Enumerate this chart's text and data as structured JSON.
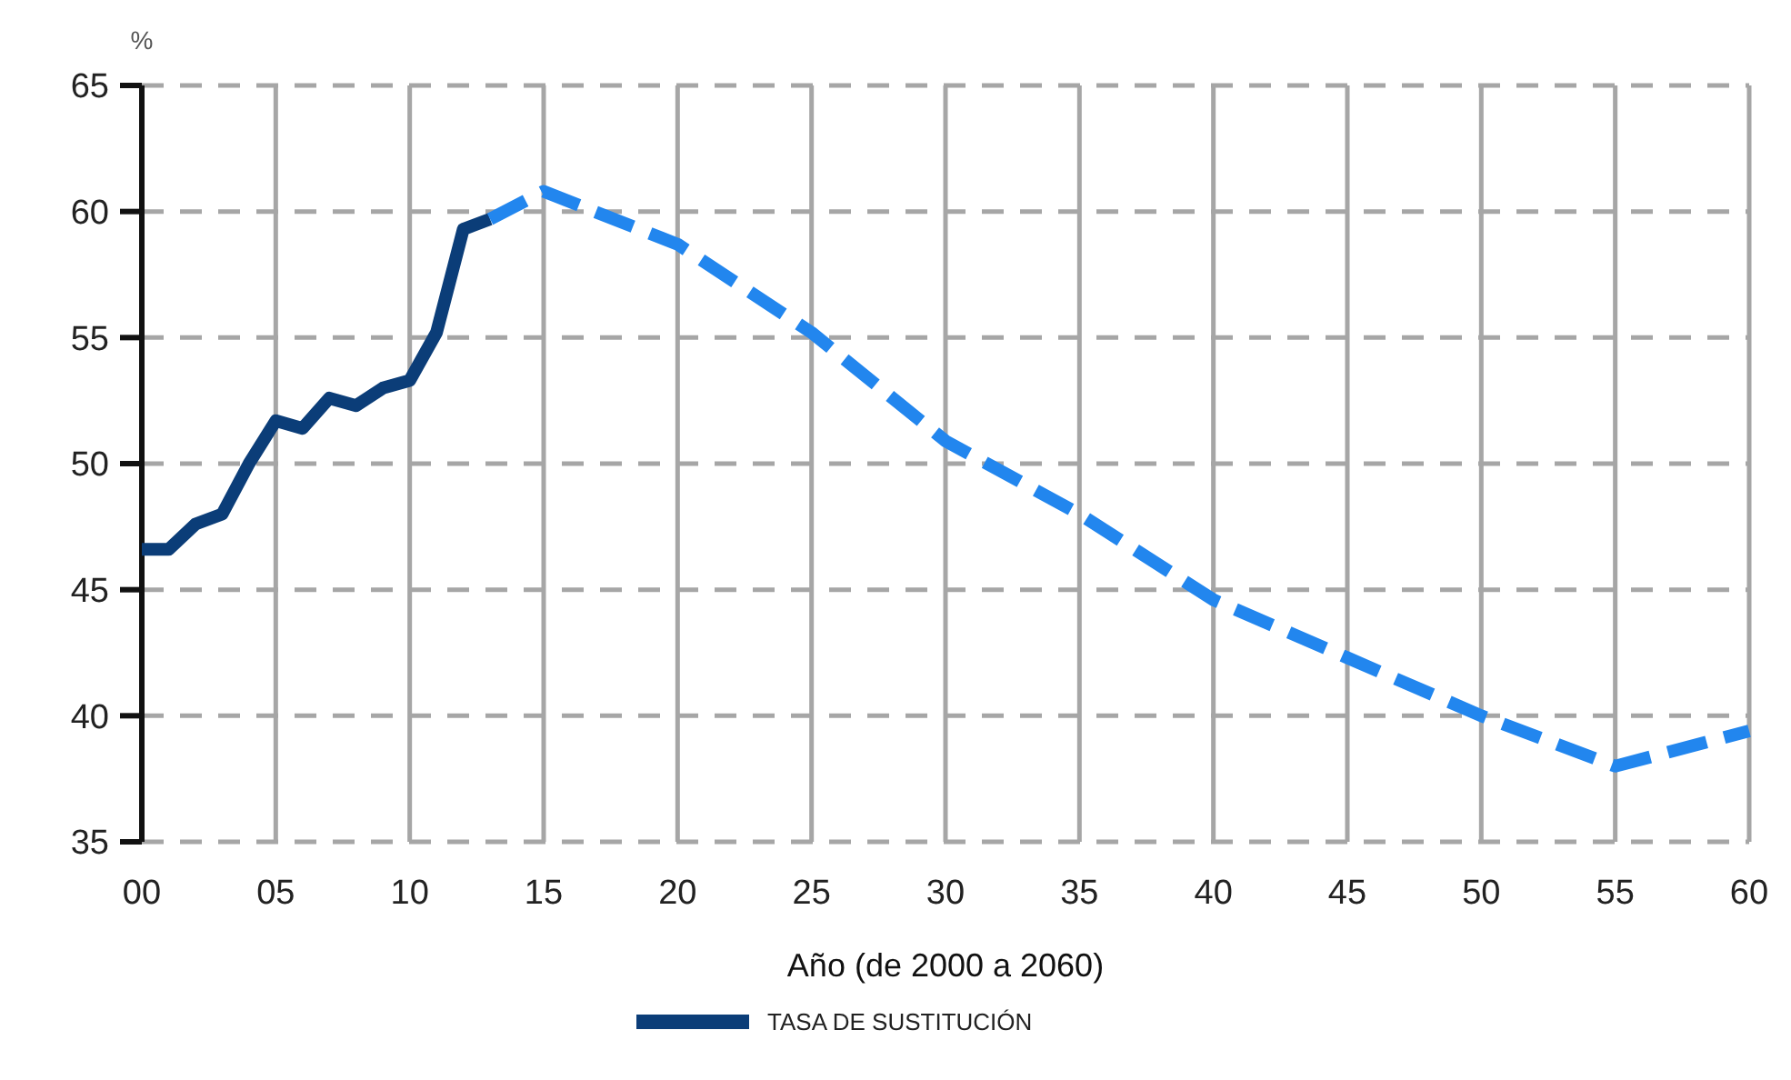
{
  "chart_data": {
    "type": "line",
    "ylabel": "%",
    "xlabel": "Año (de 2000 a 2060)",
    "xlim": [
      2000,
      2060
    ],
    "ylim": [
      35,
      65
    ],
    "xticks": [
      {
        "value": 2000,
        "label": "00"
      },
      {
        "value": 2005,
        "label": "05"
      },
      {
        "value": 2010,
        "label": "10"
      },
      {
        "value": 2015,
        "label": "15"
      },
      {
        "value": 2020,
        "label": "20"
      },
      {
        "value": 2025,
        "label": "25"
      },
      {
        "value": 2030,
        "label": "30"
      },
      {
        "value": 2035,
        "label": "35"
      },
      {
        "value": 2040,
        "label": "40"
      },
      {
        "value": 2045,
        "label": "45"
      },
      {
        "value": 2050,
        "label": "50"
      },
      {
        "value": 2055,
        "label": "55"
      },
      {
        "value": 2060,
        "label": "60"
      }
    ],
    "yticks": [
      35,
      40,
      45,
      50,
      55,
      60,
      65
    ],
    "grid": true,
    "legend": "bottom",
    "marker": "none",
    "series": [
      {
        "name": "TASA DE SUSTITUCIÓN",
        "color": "#0b3d78",
        "line_style": "solid",
        "x": [
          2000,
          2001,
          2002,
          2003,
          2004,
          2005,
          2006,
          2007,
          2008,
          2009,
          2010,
          2011,
          2012,
          2013
        ],
        "values": [
          46.6,
          46.6,
          47.6,
          48.0,
          50.0,
          51.7,
          51.4,
          52.6,
          52.3,
          53.0,
          53.3,
          55.2,
          59.3,
          59.7
        ]
      },
      {
        "color": "#2286ee",
        "line_style": "dashed",
        "x": [
          2013,
          2015,
          2020,
          2025,
          2030,
          2035,
          2040,
          2045,
          2050,
          2055,
          2060
        ],
        "values": [
          59.7,
          60.8,
          58.7,
          55.2,
          50.9,
          48.0,
          44.6,
          42.3,
          40.0,
          38.0,
          39.4
        ]
      }
    ]
  }
}
